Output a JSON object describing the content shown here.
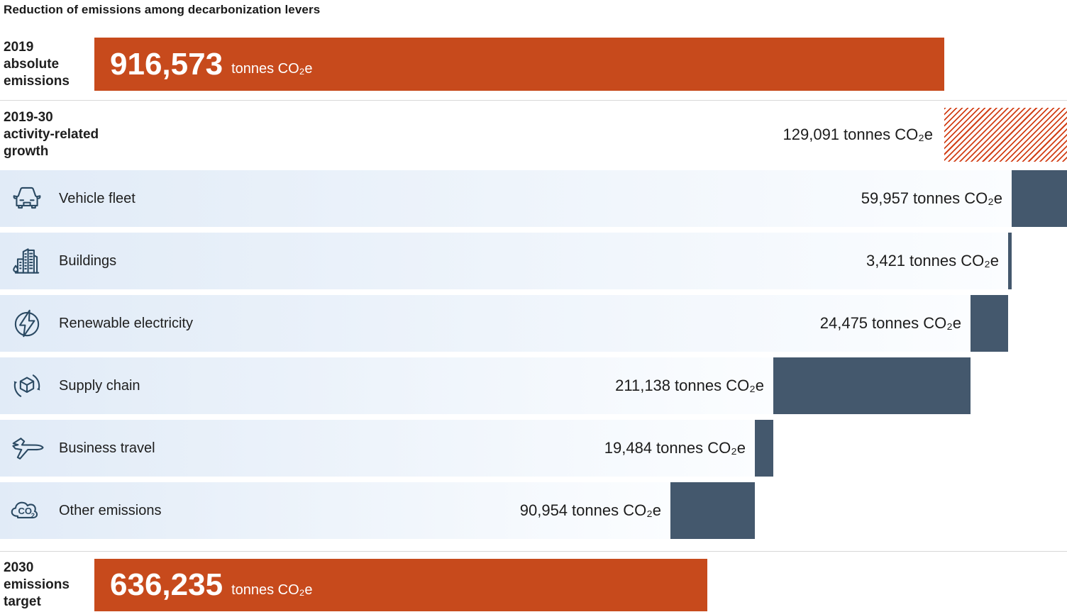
{
  "title": "Reduction of emissions among decarbonization levers",
  "colors": {
    "orange": "#c74a1c",
    "hatch": "#d23f16",
    "slate": "#44586d",
    "icon": "#2b4a63",
    "row_bg_left": "#e1ebf7",
    "row_bg_right": "#fbfdff",
    "text": "#1d1d1d"
  },
  "rows": {
    "start": {
      "label": "2019\nabsolute\nemissions",
      "value": "916,573",
      "unit": "tonnes CO₂e"
    },
    "growth": {
      "label": "2019-30\nactivity-related\ngrowth",
      "value": "129,091",
      "unit": "tonnes CO₂e"
    },
    "target": {
      "label": "2030\nemissions\ntarget",
      "value": "636,235",
      "unit": "tonnes CO₂e"
    }
  },
  "levers": [
    {
      "icon": "car-icon",
      "label": "Vehicle fleet",
      "value": "59,957",
      "unit": "tonnes CO₂e"
    },
    {
      "icon": "buildings-icon",
      "label": "Buildings",
      "value": "3,421",
      "unit": "tonnes CO₂e"
    },
    {
      "icon": "renewable-electricity-icon",
      "label": "Renewable electricity",
      "value": "24,475",
      "unit": "tonnes CO₂e"
    },
    {
      "icon": "supply-chain-icon",
      "label": "Supply chain",
      "value": "211,138",
      "unit": "tonnes CO₂e"
    },
    {
      "icon": "airplane-icon",
      "label": "Business travel",
      "value": "19,484",
      "unit": "tonnes CO₂e"
    },
    {
      "icon": "co2-cloud-icon",
      "label": "Other emissions",
      "value": "90,954",
      "unit": "tonnes CO₂e"
    }
  ],
  "chart_data": {
    "type": "bar",
    "subtype": "waterfall",
    "title": "Reduction of emissions among decarbonization levers",
    "unit": "tonnes CO2e",
    "orientation": "horizontal",
    "categories": [
      "2019 absolute emissions",
      "2019-30 activity-related growth",
      "Vehicle fleet",
      "Buildings",
      "Renewable electricity",
      "Supply chain",
      "Business travel",
      "Other emissions",
      "2030 emissions target"
    ],
    "values": [
      916573,
      129091,
      -59957,
      -3421,
      -24475,
      -211138,
      -19484,
      -90954,
      636235
    ],
    "bar_styles": [
      "solid-orange",
      "hatched-orange",
      "solid-slate",
      "solid-slate",
      "solid-slate",
      "solid-slate",
      "solid-slate",
      "solid-slate",
      "solid-orange"
    ],
    "grid": false,
    "legend": false
  }
}
